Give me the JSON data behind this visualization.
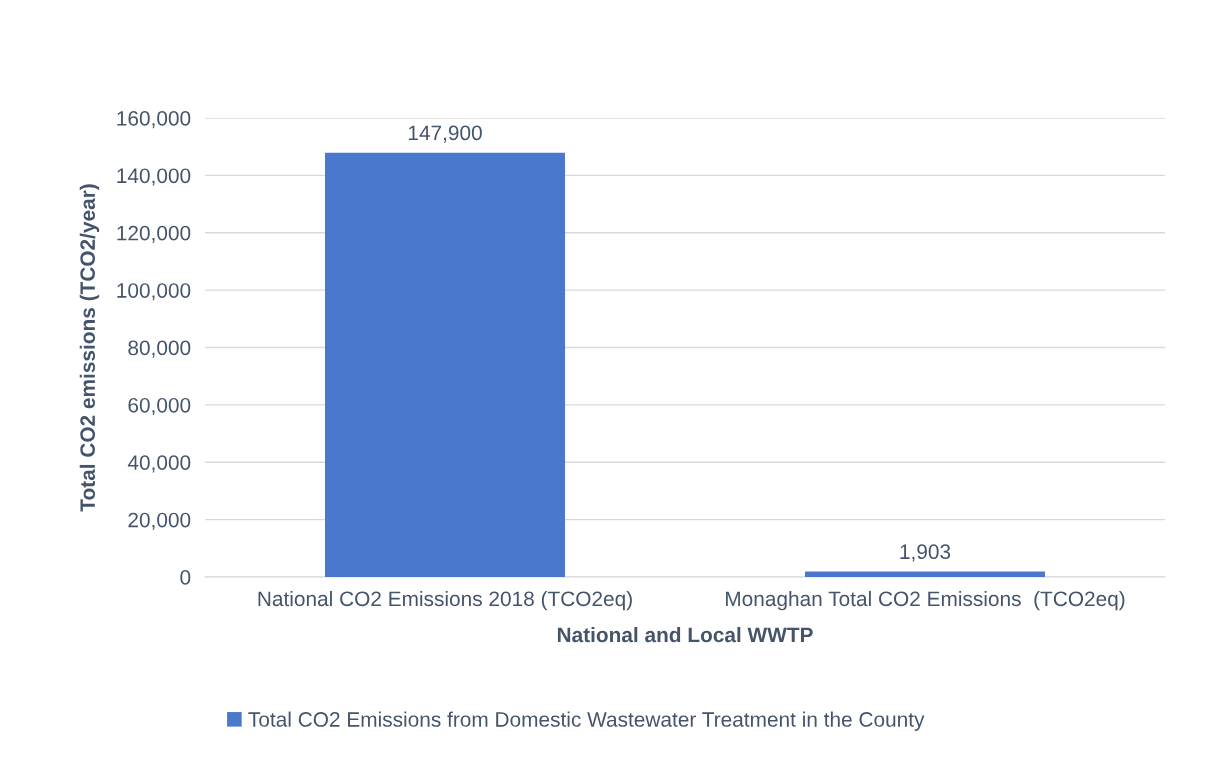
{
  "chart_data": {
    "type": "bar",
    "xlabel": "National and Local WWTP",
    "ylabel": "Total CO2 emissions (TCO2/year)",
    "categories": [
      "National CO2 Emissions 2018 (TCO2eq)",
      "Monaghan Total CO2 Emissions  (TCO2eq)"
    ],
    "series": [
      {
        "name": "Total CO2 Emissions from Domestic Wastewater Treatment in the County",
        "color": "#4a78cc",
        "values": [
          147900,
          1903
        ],
        "value_labels": [
          "147,900",
          "1,903"
        ]
      }
    ],
    "ylim": [
      0,
      160000
    ],
    "yticks": [
      {
        "value": 0,
        "label": "0"
      },
      {
        "value": 20000,
        "label": "20,000"
      },
      {
        "value": 40000,
        "label": "40,000"
      },
      {
        "value": 60000,
        "label": "60,000"
      },
      {
        "value": 80000,
        "label": "80,000"
      },
      {
        "value": 100000,
        "label": "100,000"
      },
      {
        "value": 120000,
        "label": "120,000"
      },
      {
        "value": 140000,
        "label": "140,000"
      },
      {
        "value": 160000,
        "label": "160,000"
      }
    ],
    "grid": "y",
    "legend": "bottom"
  }
}
